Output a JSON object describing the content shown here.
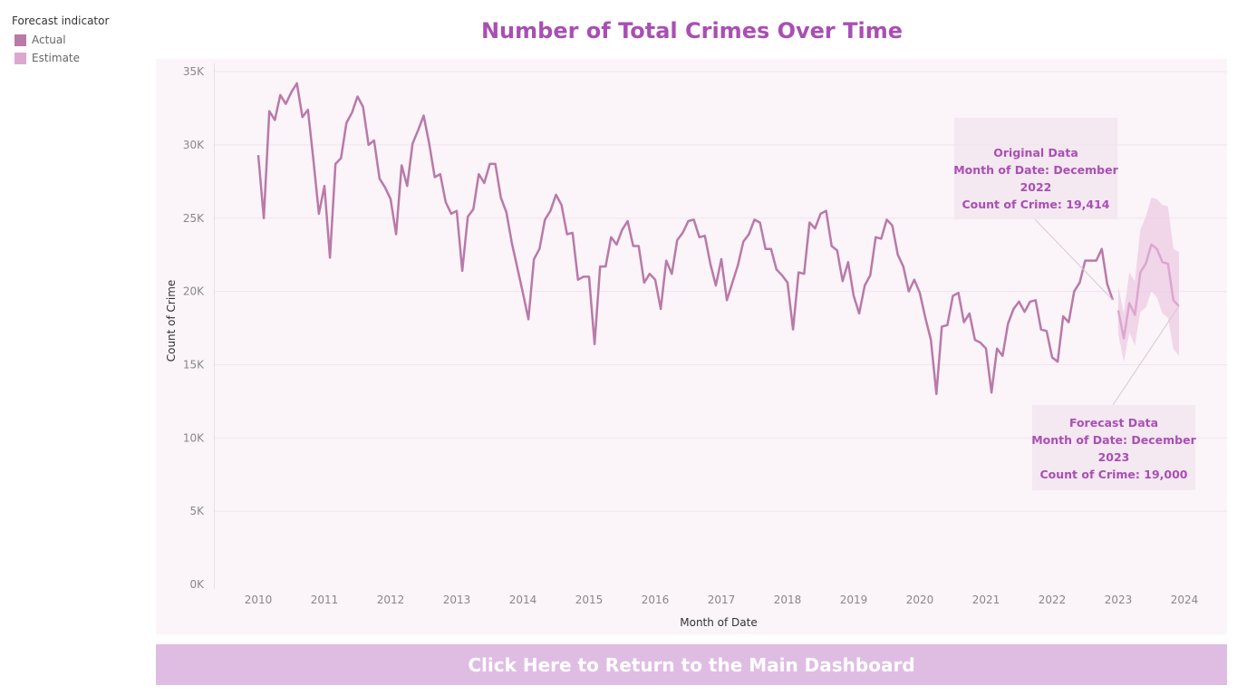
{
  "legend": {
    "title": "Forecast indicator",
    "items": [
      {
        "label": "Actual",
        "color": "#b87aa8"
      },
      {
        "label": "Estimate",
        "color": "#dba7cf"
      }
    ]
  },
  "colors": {
    "title": "#a94fb3",
    "plot_background": "#fbf4f9",
    "button_background": "#dfbde3",
    "annotation_background": "#f3e6f0",
    "annotation_text": "#a94fb3",
    "band": "#efcfe6"
  },
  "chart_data": {
    "type": "line",
    "title": "Number of Total Crimes Over Time",
    "xlabel": "Month of Date",
    "ylabel": "Count of Crime",
    "x_ticks": [
      "2010",
      "2011",
      "2012",
      "2013",
      "2014",
      "2015",
      "2016",
      "2017",
      "2018",
      "2019",
      "2020",
      "2021",
      "2022",
      "2023",
      "2024"
    ],
    "y_ticks": [
      {
        "value": 0,
        "label": "0K"
      },
      {
        "value": 5000,
        "label": "5K"
      },
      {
        "value": 10000,
        "label": "10K"
      },
      {
        "value": 15000,
        "label": "15K"
      },
      {
        "value": 20000,
        "label": "20K"
      },
      {
        "value": 25000,
        "label": "25K"
      },
      {
        "value": 30000,
        "label": "30K"
      },
      {
        "value": 35000,
        "label": "35K"
      }
    ],
    "ylim": [
      0,
      35500
    ],
    "x_start_year": 2010,
    "actual": {
      "name": "Actual",
      "start": "2010-01",
      "values": [
        29300,
        25000,
        32300,
        31700,
        33400,
        32800,
        33600,
        34200,
        31900,
        32400,
        29000,
        25300,
        27200,
        22300,
        28700,
        29100,
        31500,
        32200,
        33300,
        32600,
        30000,
        30300,
        27700,
        27100,
        26300,
        23900,
        28600,
        27200,
        30100,
        31000,
        32000,
        30100,
        27800,
        28000,
        26100,
        25300,
        25500,
        21400,
        25100,
        25600,
        28000,
        27400,
        28700,
        28700,
        26400,
        25400,
        23300,
        21600,
        19900,
        18100,
        22200,
        22900,
        24900,
        25500,
        26600,
        25900,
        23900,
        24000,
        20800,
        21000,
        21000,
        16400,
        21700,
        21700,
        23700,
        23200,
        24200,
        24800,
        23100,
        23100,
        20600,
        21200,
        20800,
        18800,
        22100,
        21200,
        23500,
        24000,
        24800,
        24900,
        23700,
        23800,
        21900,
        20400,
        22200,
        19400,
        20600,
        21800,
        23400,
        23900,
        24900,
        24700,
        22900,
        22900,
        21500,
        21100,
        20600,
        17400,
        21300,
        21200,
        24700,
        24300,
        25300,
        25500,
        23100,
        22800,
        20700,
        22000,
        19700,
        18500,
        20400,
        21100,
        23700,
        23600,
        24900,
        24500,
        22500,
        21700,
        20000,
        20800,
        19900,
        18200,
        16700,
        13000,
        17600,
        17700,
        19700,
        19900,
        17900,
        18500,
        16700,
        16500,
        16100,
        13100,
        16100,
        15600,
        17800,
        18800,
        19300,
        18600,
        19300,
        19400,
        17400,
        17300,
        15500,
        15200,
        18300,
        17900,
        20000,
        20600,
        22100,
        22100,
        22100,
        22900,
        20500,
        19414
      ]
    },
    "estimate": {
      "name": "Estimate",
      "start": "2023-01",
      "values": [
        18700,
        16800,
        19200,
        18400,
        21300,
        21900,
        23200,
        22900,
        22000,
        21900,
        19400,
        19000
      ],
      "upper": [
        20300,
        18500,
        21300,
        20700,
        24200,
        25100,
        26400,
        26300,
        25900,
        25800,
        22900,
        22700
      ],
      "lower": [
        17100,
        15200,
        17200,
        16300,
        18600,
        18900,
        20000,
        19600,
        18500,
        18200,
        16100,
        15600
      ]
    },
    "annotations": [
      {
        "title": "Original Data",
        "month_line": "Month of Date: December",
        "year_line": "2022",
        "value_line": "Count of Crime: 19,414",
        "point_series": "actual",
        "point_index": 155
      },
      {
        "title": "Forecast Data",
        "month_line": "Month of Date: December",
        "year_line": "2023",
        "value_line": "Count of Crime: 19,000",
        "point_series": "estimate",
        "point_index": 11
      }
    ]
  },
  "button": {
    "label": "Click Here to Return to the Main Dashboard"
  }
}
